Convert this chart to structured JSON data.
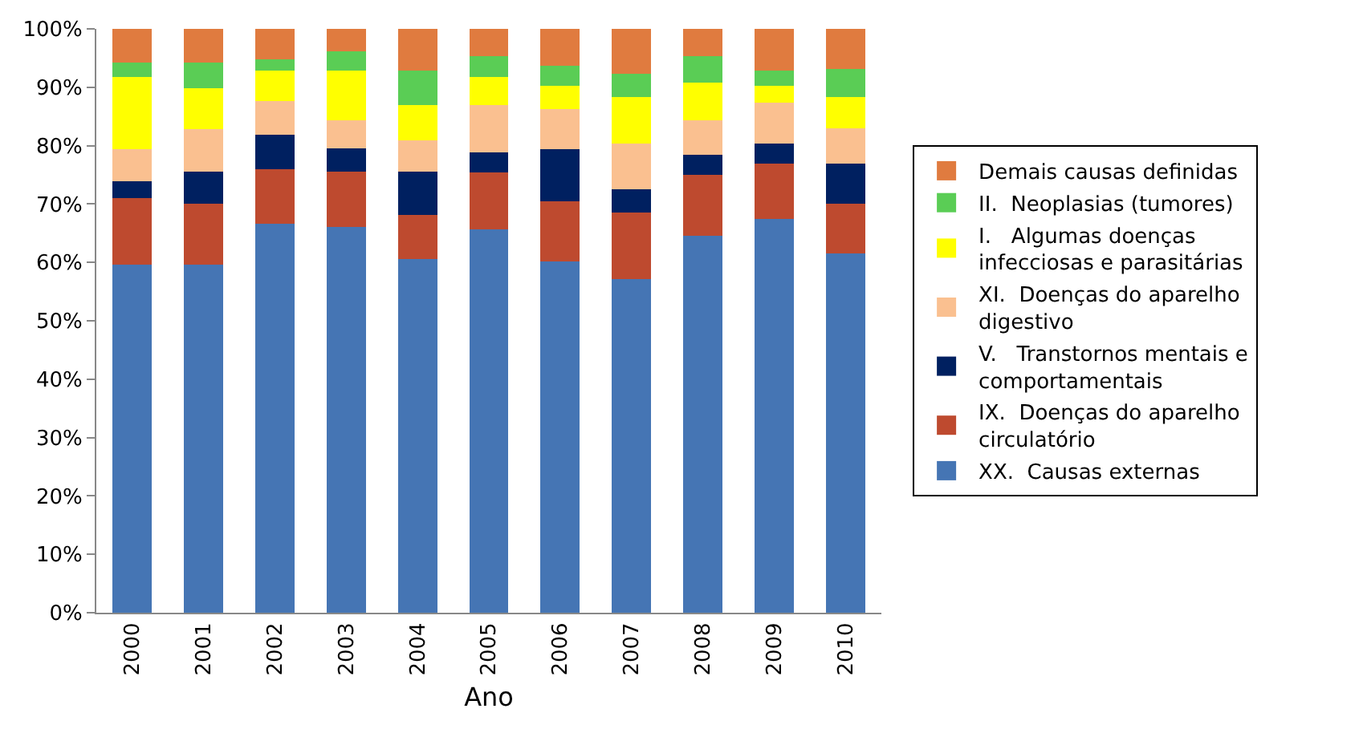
{
  "chart_data": {
    "type": "bar",
    "stacked": true,
    "xlabel": "Ano",
    "categories": [
      "2000",
      "2001",
      "2002",
      "2003",
      "2004",
      "2005",
      "2006",
      "2007",
      "2008",
      "2009",
      "2010"
    ],
    "ylim": [
      0,
      100
    ],
    "yticks": [
      {
        "value": 0,
        "label": "0%"
      },
      {
        "value": 10,
        "label": "10%"
      },
      {
        "value": 20,
        "label": "20%"
      },
      {
        "value": 30,
        "label": "30%"
      },
      {
        "value": 40,
        "label": "40%"
      },
      {
        "value": 50,
        "label": "50%"
      },
      {
        "value": 60,
        "label": "60%"
      },
      {
        "value": 70,
        "label": "70%"
      },
      {
        "value": 80,
        "label": "80%"
      },
      {
        "value": 90,
        "label": "90%"
      },
      {
        "value": 100,
        "label": "100%"
      }
    ],
    "legend": "right",
    "series": [
      {
        "name": "XX.  Causas externas",
        "color": "#4575b4",
        "values": [
          59.6,
          59.6,
          66.6,
          66.1,
          60.6,
          65.6,
          60.1,
          57.2,
          64.6,
          67.5,
          61.6
        ]
      },
      {
        "name": "IX.  Doenças do aparelho circulatório",
        "color": "#be4a2f",
        "values": [
          11.4,
          10.4,
          9.3,
          9.4,
          7.5,
          9.8,
          10.4,
          11.3,
          10.4,
          9.4,
          8.4
        ]
      },
      {
        "name": "V.   Transtornos mentais e comportamentais",
        "color": "#002060",
        "values": [
          2.9,
          5.5,
          6.0,
          4.0,
          7.4,
          3.5,
          8.9,
          4.0,
          3.5,
          3.5,
          6.9
        ]
      },
      {
        "name": "XI.  Doenças do aparelho digestivo",
        "color": "#fac090",
        "values": [
          5.5,
          7.3,
          5.8,
          4.8,
          5.4,
          8.0,
          6.9,
          7.9,
          5.8,
          6.9,
          6.0
        ]
      },
      {
        "name": "I.   Algumas doenças infecciosas e parasitárias",
        "color": "#ffff00",
        "values": [
          12.4,
          7.1,
          5.2,
          8.5,
          6.0,
          4.9,
          3.9,
          7.9,
          6.5,
          2.9,
          5.4
        ]
      },
      {
        "name": "II.  Neoplasias (tumores)",
        "color": "#5acd55",
        "values": [
          2.4,
          4.3,
          1.9,
          3.4,
          6.0,
          3.5,
          3.5,
          4.0,
          4.5,
          2.6,
          4.9
        ]
      },
      {
        "name": "Demais causas definidas",
        "color": "#e07b3f",
        "values": [
          5.8,
          5.8,
          5.2,
          3.8,
          7.1,
          4.7,
          6.3,
          7.7,
          4.7,
          7.2,
          6.8
        ]
      }
    ]
  }
}
